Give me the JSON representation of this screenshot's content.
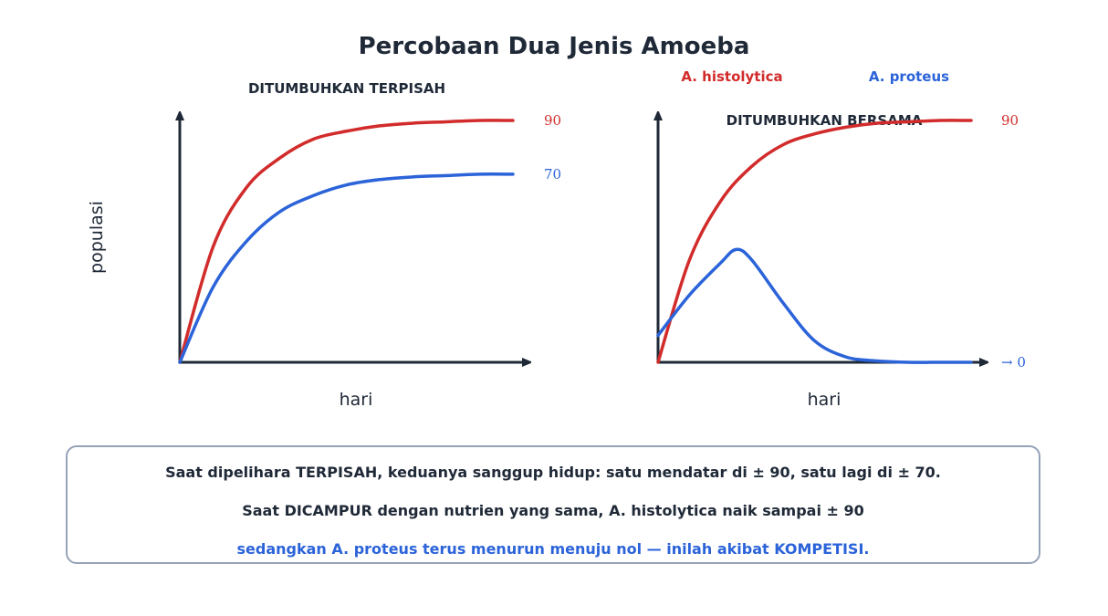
{
  "title": "Percobaan Dua Jenis Amoeba",
  "colors": {
    "histolytica": "#d22b2b",
    "proteus": "#2b63d9",
    "axis": "#1f2937",
    "text": "#1f2937",
    "box_border": "#94a3b8"
  },
  "legend": {
    "histolytica": "A. histolytica",
    "proteus": "A. proteus"
  },
  "chart_data": [
    {
      "type": "line",
      "title": "DITUMBUHKAN TERPISAH",
      "xlabel": "hari",
      "ylabel": "populasi",
      "grid": false,
      "ylim": [
        0,
        100
      ],
      "series": [
        {
          "name": "A. histolytica",
          "color": "#d22b2b",
          "end_label": "90",
          "plateau": 90,
          "x": [
            0,
            1,
            2,
            3,
            4,
            5,
            6,
            7,
            8,
            9,
            10
          ],
          "y": [
            0,
            43,
            65,
            76,
            83,
            86,
            88,
            89,
            89.5,
            90,
            90
          ]
        },
        {
          "name": "A. proteus",
          "color": "#2b63d9",
          "end_label": "70",
          "plateau": 70,
          "x": [
            0,
            1,
            2,
            3,
            4,
            5,
            6,
            7,
            8,
            9,
            10
          ],
          "y": [
            0,
            28,
            45,
            56,
            62,
            66,
            68,
            69,
            69.5,
            70,
            70
          ]
        }
      ]
    },
    {
      "type": "line",
      "title": "DITUMBUHKAN BERSAMA",
      "xlabel": "hari",
      "grid": false,
      "ylim": [
        0,
        100
      ],
      "series": [
        {
          "name": "A. histolytica",
          "color": "#d22b2b",
          "end_label": "90",
          "plateau": 90,
          "x": [
            0,
            1,
            2,
            3,
            4,
            5,
            6,
            7,
            8,
            9,
            10
          ],
          "y": [
            0,
            38,
            60,
            73,
            81,
            85,
            87.5,
            89,
            89.5,
            90,
            90
          ]
        },
        {
          "name": "A. proteus",
          "color": "#2b63d9",
          "end_label": "→ 0",
          "plateau": 0,
          "x": [
            0,
            1,
            2,
            2.5,
            3,
            4,
            5,
            6,
            7,
            8,
            9,
            10
          ],
          "y": [
            10,
            25,
            37,
            42,
            38,
            22,
            8,
            2,
            0.5,
            0,
            0,
            0
          ]
        }
      ]
    }
  ],
  "caption": {
    "line1": "Saat dipelihara TERPISAH, keduanya sanggup hidup: satu mendatar di ± 90, satu lagi di ± 70.",
    "line2": "Saat DICAMPUR dengan nutrien yang sama, A. histolytica naik sampai ± 90",
    "line3": "sedangkan A. proteus terus menurun menuju nol — inilah akibat KOMPETISI."
  }
}
